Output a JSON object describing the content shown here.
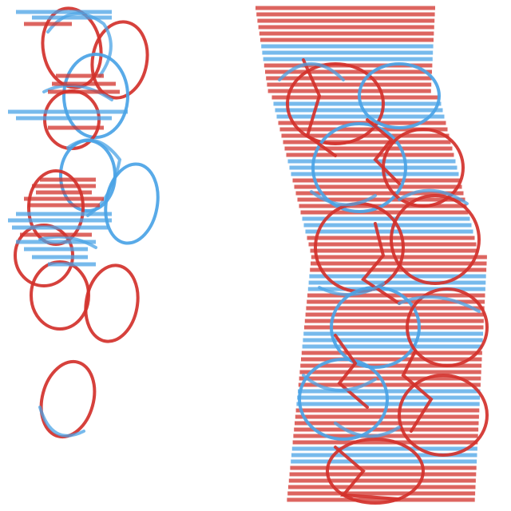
{
  "colors": {
    "background": "#ffffff",
    "red": "#d2312b",
    "blue": "#4aa3e6"
  }
}
